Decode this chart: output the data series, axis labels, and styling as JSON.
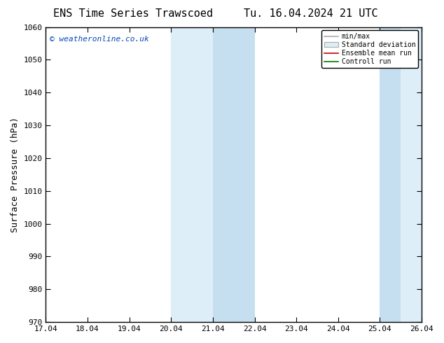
{
  "title_left": "ENS Time Series Trawscoed",
  "title_right": "Tu. 16.04.2024 21 UTC",
  "ylabel": "Surface Pressure (hPa)",
  "ylim": [
    970,
    1060
  ],
  "yticks": [
    970,
    980,
    990,
    1000,
    1010,
    1020,
    1030,
    1040,
    1050,
    1060
  ],
  "xlabels": [
    "17.04",
    "18.04",
    "19.04",
    "20.04",
    "21.04",
    "22.04",
    "23.04",
    "24.04",
    "25.04",
    "26.04"
  ],
  "band1_light": {
    "xmin": 3,
    "xmax": 5
  },
  "band1_dark": {
    "xmin": 4,
    "xmax": 5
  },
  "band2_light": {
    "xmin": 8,
    "xmax": 9
  },
  "band2_dark": {
    "xmin": 8,
    "xmax": 8.5
  },
  "shade_light_color": "#ddeef8",
  "shade_dark_color": "#c5dff0",
  "watermark": "© weatheronline.co.uk",
  "watermark_color": "#0044cc",
  "bg_color": "#ffffff",
  "title_fontsize": 11,
  "tick_label_fontsize": 8,
  "ylabel_fontsize": 9
}
